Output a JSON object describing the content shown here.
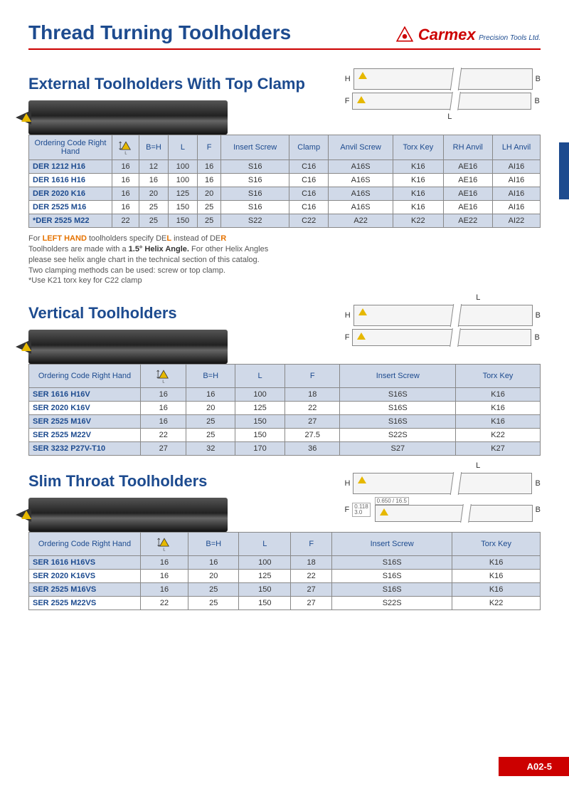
{
  "header": {
    "title": "Thread Turning Toolholders",
    "brand": "Carmex",
    "subtitle": "Precision Tools Ltd."
  },
  "pageCode": "A02-5",
  "externals": {
    "title": "External Toolholders With Top Clamp",
    "columns": [
      "Ordering Code Right Hand",
      "",
      "B=H",
      "L",
      "F",
      "Insert Screw",
      "Clamp",
      "Anvil Screw",
      "Torx Key",
      "RH Anvil",
      "LH Anvil"
    ],
    "rows": [
      {
        "code": "DER 1212 H16",
        "v": [
          "16",
          "12",
          "100",
          "16",
          "S16",
          "C16",
          "A16S",
          "K16",
          "AE16",
          "AI16"
        ],
        "stripe": true
      },
      {
        "code": "DER 1616 H16",
        "v": [
          "16",
          "16",
          "100",
          "16",
          "S16",
          "C16",
          "A16S",
          "K16",
          "AE16",
          "AI16"
        ]
      },
      {
        "code": "DER 2020 K16",
        "v": [
          "16",
          "20",
          "125",
          "20",
          "S16",
          "C16",
          "A16S",
          "K16",
          "AE16",
          "AI16"
        ],
        "stripe": true
      },
      {
        "code": "DER 2525 M16",
        "v": [
          "16",
          "25",
          "150",
          "25",
          "S16",
          "C16",
          "A16S",
          "K16",
          "AE16",
          "AI16"
        ]
      },
      {
        "code": "*DER 2525 M22",
        "v": [
          "22",
          "25",
          "150",
          "25",
          "S22",
          "C22",
          "A22",
          "K22",
          "AE22",
          "AI22"
        ],
        "stripe": true
      }
    ],
    "notes": [
      "For LEFT HAND toolholders specify DEL instead of DER",
      "Toolholders are made with a 1.5° Helix Angle. For other Helix Angles",
      "please see helix angle chart in the technical section of this catalog.",
      "Two clamping methods can be used: screw or top clamp.",
      "*Use K21 torx key for C22 clamp"
    ]
  },
  "vertical": {
    "title": "Vertical Toolholders",
    "columns": [
      "Ordering Code Right Hand",
      "",
      "B=H",
      "L",
      "F",
      "Insert Screw",
      "Torx Key"
    ],
    "rows": [
      {
        "code": "SER 1616 H16V",
        "v": [
          "16",
          "16",
          "100",
          "18",
          "S16S",
          "K16"
        ],
        "stripe": true
      },
      {
        "code": "SER 2020 K16V",
        "v": [
          "16",
          "20",
          "125",
          "22",
          "S16S",
          "K16"
        ]
      },
      {
        "code": "SER 2525 M16V",
        "v": [
          "16",
          "25",
          "150",
          "27",
          "S16S",
          "K16"
        ],
        "stripe": true
      },
      {
        "code": "SER 2525 M22V",
        "v": [
          "22",
          "25",
          "150",
          "27.5",
          "S22S",
          "K22"
        ]
      },
      {
        "code": "SER 3232 P27V-T10",
        "v": [
          "27",
          "32",
          "170",
          "36",
          "S27",
          "K27"
        ],
        "stripe": true
      }
    ]
  },
  "slim": {
    "title": "Slim Throat Toolholders",
    "columns": [
      "Ordering Code Right Hand",
      "",
      "B=H",
      "L",
      "F",
      "Insert Screw",
      "Torx Key"
    ],
    "rows": [
      {
        "code": "SER 1616 H16VS",
        "v": [
          "16",
          "16",
          "100",
          "18",
          "S16S",
          "K16"
        ],
        "stripe": true
      },
      {
        "code": "SER 2020 K16VS",
        "v": [
          "16",
          "20",
          "125",
          "22",
          "S16S",
          "K16"
        ]
      },
      {
        "code": "SER 2525 M16VS",
        "v": [
          "16",
          "25",
          "150",
          "27",
          "S16S",
          "K16"
        ],
        "stripe": true
      },
      {
        "code": "SER 2525 M22VS",
        "v": [
          "22",
          "25",
          "150",
          "27",
          "S22S",
          "K22"
        ]
      }
    ]
  },
  "dims": {
    "H": "H",
    "B": "B",
    "F": "F",
    "L": "L"
  },
  "slimExtra": {
    "a": "0.650",
    "b": "16.5",
    "c": "0.118",
    "d": "3.0"
  }
}
